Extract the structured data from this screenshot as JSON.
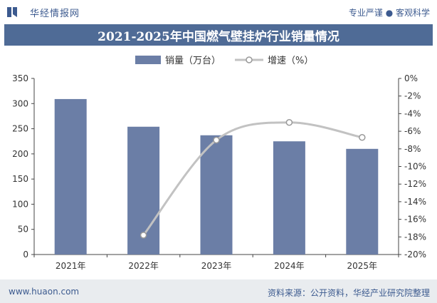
{
  "header": {
    "brand_name": "华经情报网",
    "slogan": "专业严谨 ● 客观科学"
  },
  "footer": {
    "url": "www.huaon.com",
    "source": "资料来源：公开资料，华经产业研究院整理"
  },
  "colors": {
    "bar": "#6b7ea6",
    "line": "#c2c2c2",
    "title_bg": "#4f6b96",
    "brand": "#3c5a8f"
  },
  "chart_data": {
    "type": "bar",
    "title": "2021-2025年中国燃气壁挂炉行业销量情况",
    "categories": [
      "2021年",
      "2022年",
      "2023年",
      "2024年",
      "2025年"
    ],
    "legend_position": "top-center",
    "grid": false,
    "series": [
      {
        "name": "销量（万台）",
        "type": "bar",
        "axis": "left",
        "values": [
          309,
          254,
          237,
          225,
          210
        ]
      },
      {
        "name": "增速（%）",
        "type": "line",
        "axis": "right",
        "values": [
          null,
          -17.8,
          -7.0,
          -5.0,
          -6.7
        ]
      }
    ],
    "y_left": {
      "min": 0,
      "max": 350,
      "ticks": [
        "0",
        "50",
        "100",
        "150",
        "200",
        "250",
        "300",
        "350"
      ]
    },
    "y_right": {
      "min": -20,
      "max": 0,
      "ticks": [
        "-20%",
        "-18%",
        "-16%",
        "-14%",
        "-12%",
        "-10%",
        "-8%",
        "-6%",
        "-4%",
        "-2%",
        "0%"
      ]
    }
  }
}
